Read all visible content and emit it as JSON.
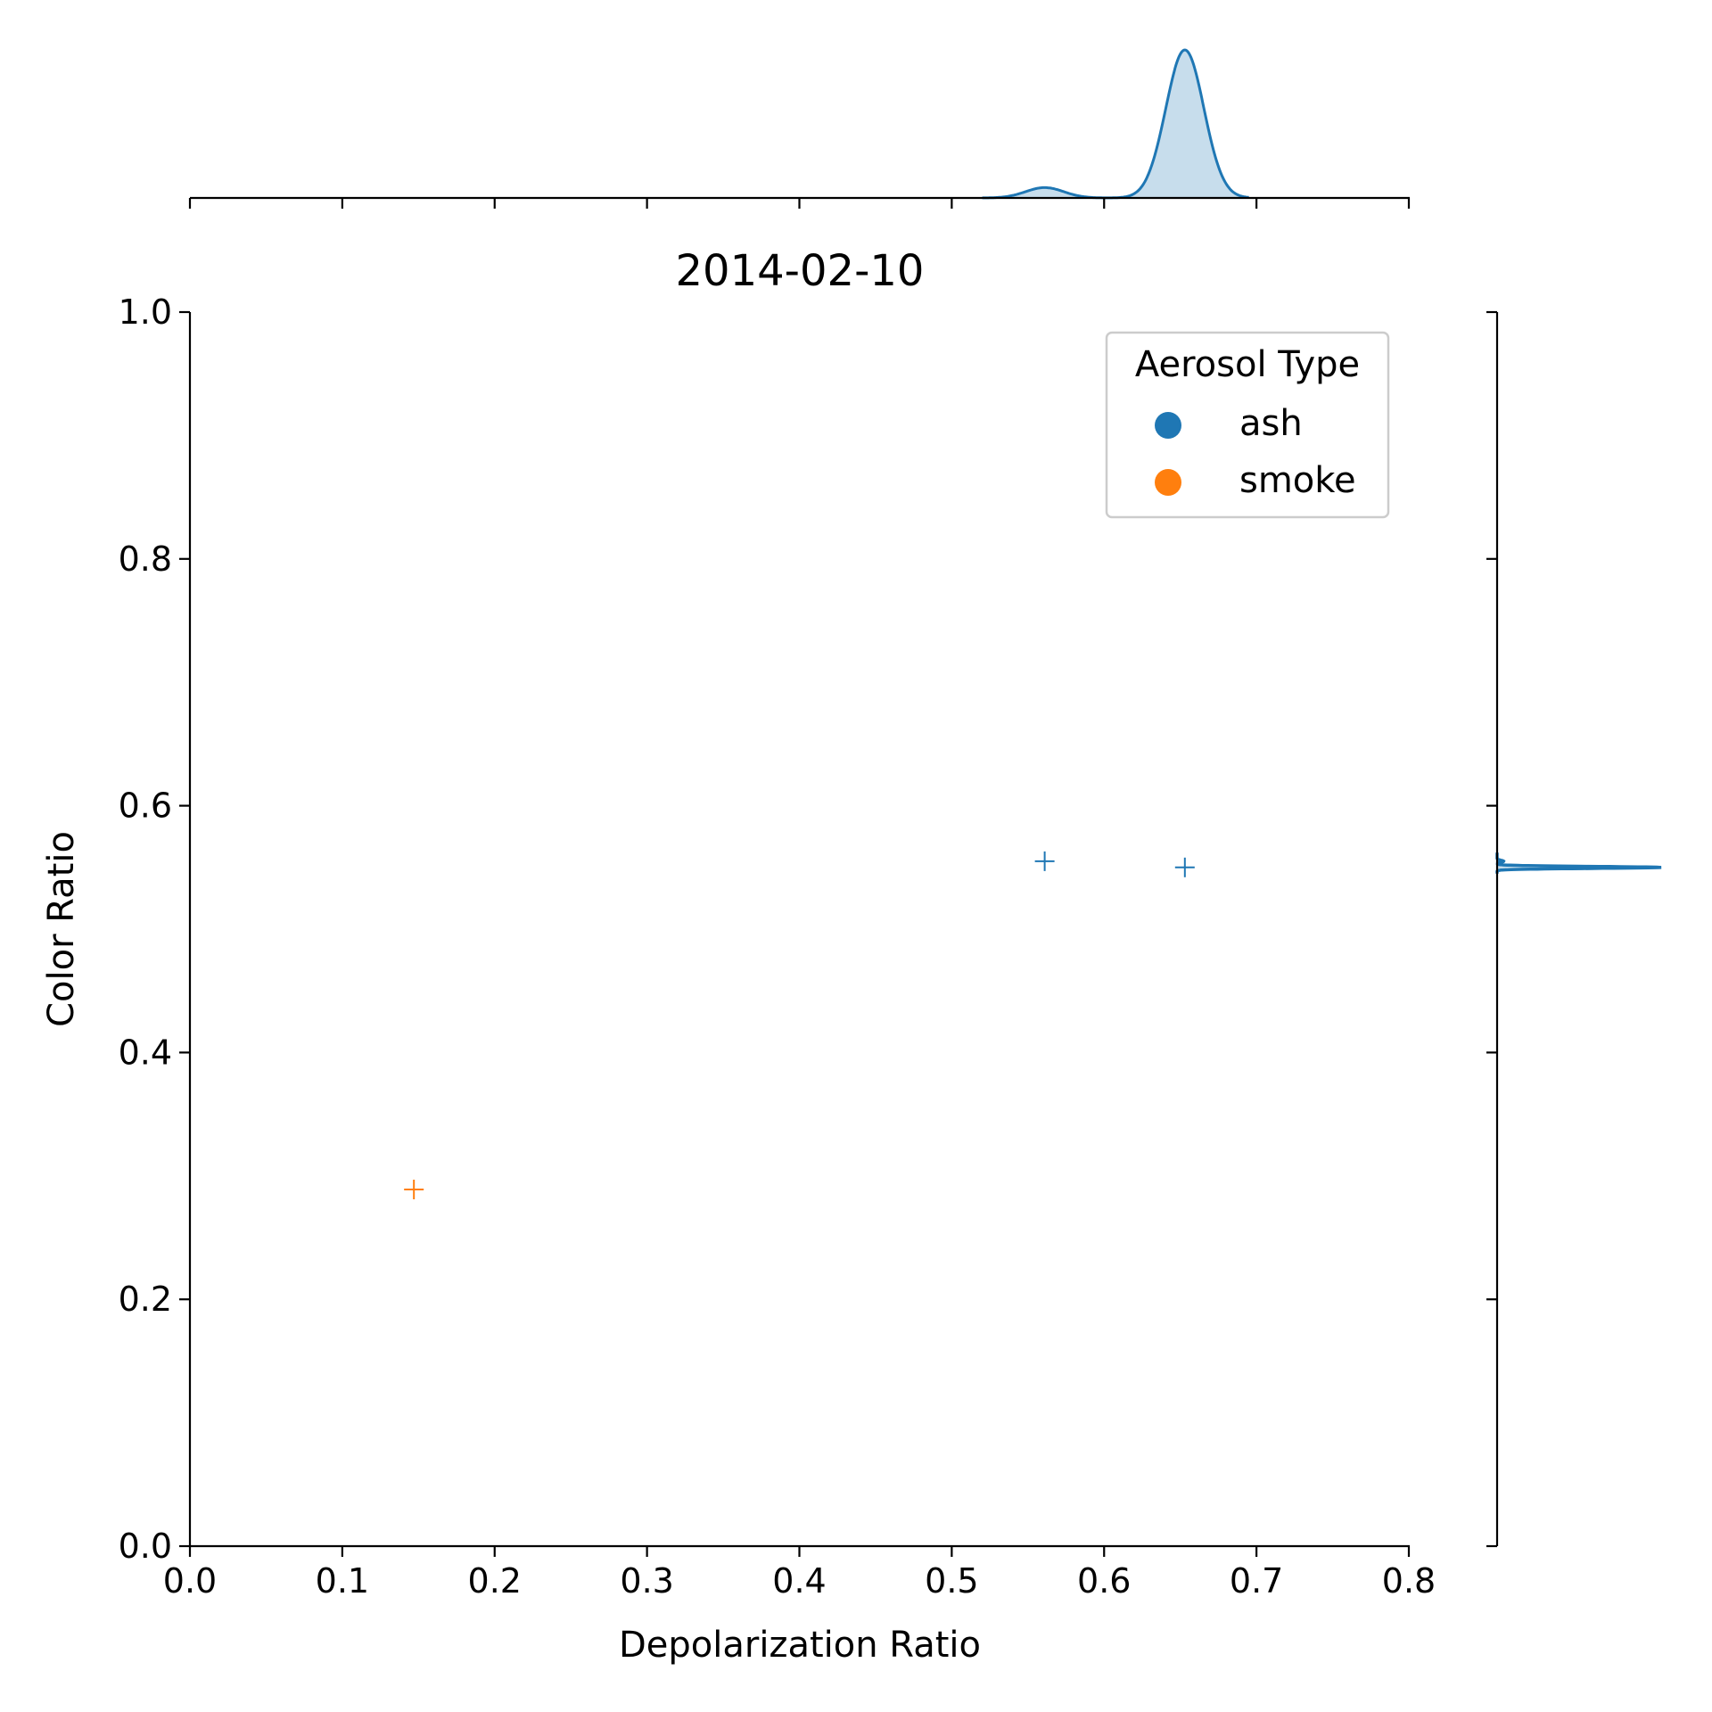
{
  "chart_data": {
    "type": "scatter",
    "title": "2014-02-10",
    "xlabel": "Depolarization Ratio",
    "ylabel": "Color Ratio",
    "xlim": [
      0.0,
      0.8
    ],
    "ylim": [
      0.0,
      1.0
    ],
    "xticks": [
      "0.0",
      "0.1",
      "0.2",
      "0.3",
      "0.4",
      "0.5",
      "0.6",
      "0.7",
      "0.8"
    ],
    "yticks": [
      "0.0",
      "0.2",
      "0.4",
      "0.6",
      "0.8",
      "1.0"
    ],
    "marker": "+",
    "grid": false,
    "legend": {
      "title": "Aerosol Type",
      "placement": "top-right",
      "entries": [
        {
          "label": "ash",
          "color": "#1f77b4"
        },
        {
          "label": "smoke",
          "color": "#ff7f0e"
        }
      ]
    },
    "series": [
      {
        "name": "ash",
        "color": "#1f77b4",
        "points": [
          [
            0.561,
            0.555
          ],
          [
            0.653,
            0.55
          ]
        ]
      },
      {
        "name": "smoke",
        "color": "#ff7f0e",
        "points": [
          [
            0.147,
            0.289
          ]
        ]
      }
    ],
    "marginals": {
      "x_kde": {
        "series": "ash",
        "fill": true
      },
      "y_kde": {
        "series": "ash",
        "fill": true
      }
    }
  }
}
